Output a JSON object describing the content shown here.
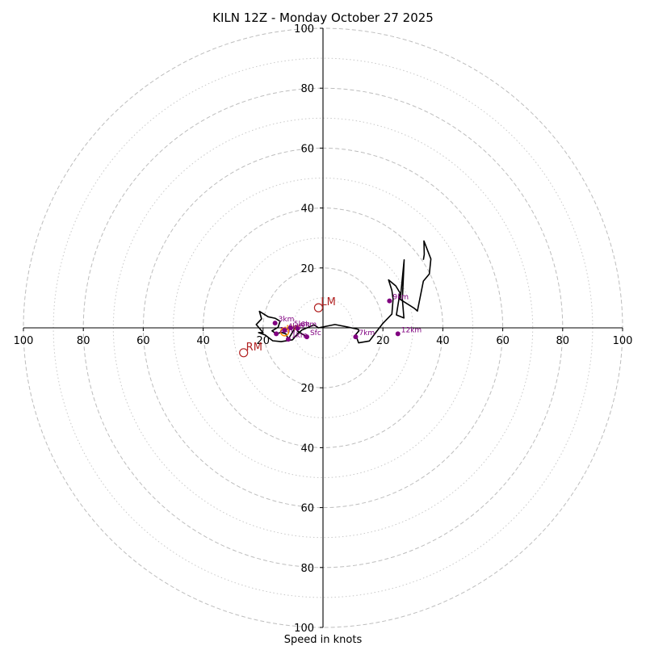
{
  "chart_data": {
    "type": "hodograph",
    "title": "KILN 12Z - Monday October 27 2025",
    "xlabel": "Speed in knots",
    "range": [
      -100,
      100
    ],
    "ring_major": [
      20,
      40,
      60,
      80,
      100
    ],
    "ring_minor": [
      10,
      30,
      50,
      70,
      90
    ],
    "x_ticks": [
      {
        "value": -100,
        "label": "100"
      },
      {
        "value": -80,
        "label": "80"
      },
      {
        "value": -60,
        "label": "60"
      },
      {
        "value": -40,
        "label": "40"
      },
      {
        "value": -20,
        "label": "20"
      },
      {
        "value": 20,
        "label": "20"
      },
      {
        "value": 40,
        "label": "40"
      },
      {
        "value": 60,
        "label": "60"
      },
      {
        "value": 80,
        "label": "80"
      },
      {
        "value": 100,
        "label": "100"
      }
    ],
    "y_ticks": [
      {
        "value": 100,
        "label": "100"
      },
      {
        "value": 80,
        "label": "80"
      },
      {
        "value": 60,
        "label": "60"
      },
      {
        "value": 40,
        "label": "40"
      },
      {
        "value": 20,
        "label": "20"
      },
      {
        "value": -20,
        "label": "20"
      },
      {
        "value": -40,
        "label": "40"
      },
      {
        "value": -60,
        "label": "60"
      },
      {
        "value": -80,
        "label": "80"
      },
      {
        "value": -100,
        "label": "100"
      }
    ],
    "trace_color": "#000000",
    "trace": [
      [
        -5.4,
        -3.0
      ],
      [
        -8.5,
        -1.1
      ],
      [
        -9.0,
        0.5
      ],
      [
        -10.5,
        -2.0
      ],
      [
        -11.6,
        -3.8
      ],
      [
        -12.4,
        -2.0
      ],
      [
        -14.0,
        -1.5
      ],
      [
        -15.6,
        -2.0
      ],
      [
        -17.0,
        -1.0
      ],
      [
        -15.0,
        0.2
      ],
      [
        -14.3,
        2.2
      ],
      [
        -16.0,
        3.2
      ],
      [
        -18.3,
        3.7
      ],
      [
        -21.2,
        5.5
      ],
      [
        -20.5,
        3.0
      ],
      [
        -22.3,
        1.1
      ],
      [
        -20.0,
        -1.6
      ],
      [
        -21.5,
        -1.6
      ],
      [
        -19.3,
        -2.4
      ],
      [
        -16.8,
        -4.3
      ],
      [
        -14.0,
        -4.6
      ],
      [
        -10.2,
        -4.0
      ],
      [
        -8.5,
        -2.0
      ],
      [
        -7.0,
        -0.7
      ],
      [
        -3.0,
        1.0
      ],
      [
        -1.5,
        0.0
      ],
      [
        4.0,
        1.1
      ],
      [
        8.1,
        0.3
      ],
      [
        11.8,
        -0.5
      ],
      [
        12.0,
        -1.0
      ],
      [
        10.9,
        -2.3
      ],
      [
        11.9,
        -5.0
      ],
      [
        15.5,
        -4.4
      ],
      [
        17.6,
        -1.6
      ],
      [
        20.0,
        1.5
      ],
      [
        23.0,
        4.6
      ],
      [
        23.4,
        9.6
      ],
      [
        23.0,
        12.5
      ],
      [
        21.9,
        16.0
      ],
      [
        24.3,
        14.0
      ],
      [
        25.7,
        11.7
      ],
      [
        24.5,
        4.3
      ],
      [
        27.0,
        3.3
      ],
      [
        26.5,
        9.5
      ],
      [
        27.1,
        22.7
      ],
      [
        25.8,
        9.5
      ],
      [
        30.5,
        6.5
      ],
      [
        31.5,
        5.6
      ],
      [
        33.5,
        15.6
      ],
      [
        35.5,
        18.0
      ],
      [
        36.0,
        23.0
      ],
      [
        33.7,
        29.0
      ],
      [
        33.8,
        24.5
      ],
      [
        33.5,
        22.7
      ]
    ],
    "height_markers": [
      {
        "label": "Sfc",
        "u": -5.4,
        "v": -3.0
      },
      {
        "label": "1km",
        "u": -11.6,
        "v": -3.8
      },
      {
        "label": "2km",
        "u": -15.6,
        "v": -2.0
      },
      {
        "label": "3km",
        "u": -16.0,
        "v": 1.6
      },
      {
        "label": "4km",
        "u": -12.8,
        "v": -0.8
      },
      {
        "label": "5km",
        "u": -10.8,
        "v": 0.0
      },
      {
        "label": "6km",
        "u": -8.5,
        "v": -0.2
      },
      {
        "label": "7km",
        "u": 10.9,
        "v": -3.0
      },
      {
        "label": "9km",
        "u": 22.2,
        "v": 9.0
      },
      {
        "label": "12km",
        "u": 25.0,
        "v": -2.0
      }
    ],
    "height_marker_color": "#800080",
    "storm_motion": [
      {
        "label": "RM",
        "u": -26.5,
        "v": -8.3
      },
      {
        "label": "LM",
        "u": -1.5,
        "v": 6.7
      }
    ],
    "storm_motion_color": "#b22222",
    "mean_wind": {
      "label": "MW",
      "u": -12.8,
      "v": -1.3,
      "color": "#ff8c00"
    }
  }
}
